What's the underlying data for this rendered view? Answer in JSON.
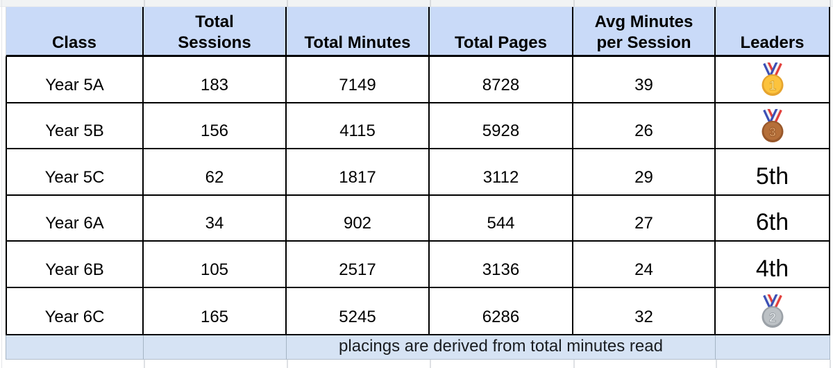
{
  "colors": {
    "header_bg": "#c9daf8",
    "footer_bg": "#d6e3f4",
    "table_border": "#000000"
  },
  "table": {
    "columns": [
      "Class",
      "Total\nSessions",
      "Total Minutes",
      "Total Pages",
      "Avg Minutes\nper Session",
      "Leaders"
    ],
    "rows": [
      {
        "class": "Year 5A",
        "total_sessions": "183",
        "total_minutes": "7149",
        "total_pages": "8728",
        "avg_minutes_per_session": "39",
        "leader": {
          "kind": "medal",
          "place": "1",
          "name": "gold-medal"
        }
      },
      {
        "class": "Year 5B",
        "total_sessions": "156",
        "total_minutes": "4115",
        "total_pages": "5928",
        "avg_minutes_per_session": "26",
        "leader": {
          "kind": "medal",
          "place": "3",
          "name": "bronze-medal"
        }
      },
      {
        "class": "Year 5C",
        "total_sessions": "62",
        "total_minutes": "1817",
        "total_pages": "3112",
        "avg_minutes_per_session": "29",
        "leader": {
          "kind": "text",
          "label": "5th"
        }
      },
      {
        "class": "Year 6A",
        "total_sessions": "34",
        "total_minutes": "902",
        "total_pages": "544",
        "avg_minutes_per_session": "27",
        "leader": {
          "kind": "text",
          "label": "6th"
        }
      },
      {
        "class": "Year 6B",
        "total_sessions": "105",
        "total_minutes": "2517",
        "total_pages": "3136",
        "avg_minutes_per_session": "24",
        "leader": {
          "kind": "text",
          "label": "4th"
        }
      },
      {
        "class": "Year 6C",
        "total_sessions": "165",
        "total_minutes": "5245",
        "total_pages": "6286",
        "avg_minutes_per_session": "32",
        "leader": {
          "kind": "medal",
          "place": "2",
          "name": "silver-medal"
        }
      }
    ],
    "footer_note": "placings are derived from total minutes read"
  },
  "medals": {
    "ribbon": {
      "stripes": [
        "#3c50b5",
        "#f2f4f6",
        "#e2403c"
      ]
    },
    "1": {
      "outer": "#e6a42e",
      "face": "#fcc33d",
      "num": "#fbe08a",
      "numStroke": "#d29a25"
    },
    "2": {
      "outer": "#9ba1a7",
      "face": "#bcc1c5",
      "num": "#e4e7ea",
      "numStroke": "#8f969c"
    },
    "3": {
      "outer": "#98572a",
      "face": "#b56f39",
      "num": "#d89a62",
      "numStroke": "#8a4e24"
    }
  }
}
